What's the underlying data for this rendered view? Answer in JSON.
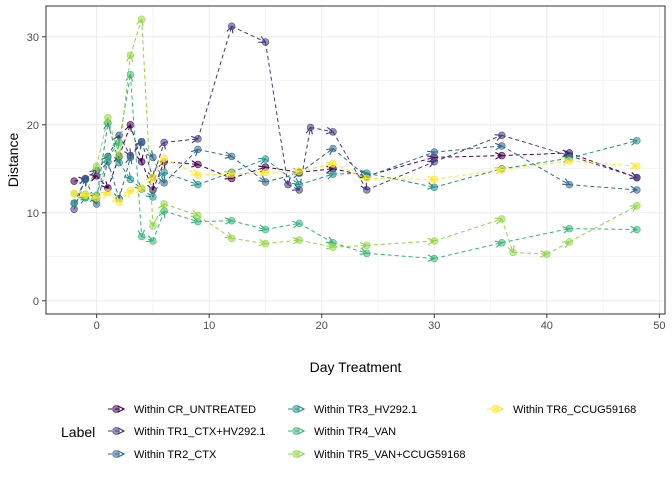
{
  "chart_data": {
    "type": "line",
    "xlabel": "Day Treatment",
    "ylabel": "Distance",
    "xlim": [
      -4.5,
      50.5
    ],
    "ylim": [
      -1.5,
      33.5
    ],
    "xticks": [
      0,
      10,
      20,
      30,
      40,
      50
    ],
    "yticks": [
      0,
      10,
      20,
      30
    ],
    "grid": true,
    "line_style": "dashed",
    "markers": "circle",
    "arrow_at_end": true,
    "legend_title": "Label",
    "legend_position": "bottom",
    "series": [
      {
        "name": "Within CR_UNTREATED",
        "color": "#440154",
        "x": [
          -2,
          -1,
          0,
          1,
          2,
          3,
          4,
          5,
          6,
          9,
          12,
          15,
          18,
          21,
          24,
          30,
          36,
          42,
          48
        ],
        "y": [
          13.6,
          13.8,
          14.2,
          12.8,
          16.4,
          20.0,
          15.8,
          12.6,
          15.8,
          15.5,
          13.9,
          15.2,
          14.6,
          15.0,
          14.2,
          16.3,
          16.5,
          16.8,
          14.0
        ]
      },
      {
        "name": "Within TR1_CTX+HV292.1",
        "color": "#443A83",
        "x": [
          -2,
          -1,
          0,
          1,
          2,
          3,
          4,
          5,
          6,
          9,
          12,
          15,
          17,
          18,
          19,
          21,
          24,
          30,
          36,
          42,
          48
        ],
        "y": [
          10.4,
          13.9,
          14.8,
          16.4,
          18.8,
          16.5,
          18.1,
          14.0,
          18.0,
          18.4,
          31.2,
          29.4,
          13.2,
          12.6,
          19.7,
          19.2,
          12.6,
          15.8,
          18.8,
          16.5,
          14.0
        ]
      },
      {
        "name": "Within TR2_CTX",
        "color": "#31688E",
        "x": [
          -2,
          -1,
          0,
          1,
          2,
          3,
          4,
          5,
          6,
          9,
          12,
          15,
          18,
          21,
          24,
          30,
          36,
          42,
          48
        ],
        "y": [
          11.1,
          13.8,
          11.0,
          15.8,
          11.6,
          16.3,
          18.0,
          16.3,
          13.4,
          17.2,
          16.4,
          13.5,
          14.5,
          17.3,
          14.1,
          16.9,
          17.6,
          13.2,
          12.6
        ]
      },
      {
        "name": "Within TR3_HV292.1",
        "color": "#21908C",
        "x": [
          -2,
          -1,
          0,
          1,
          2,
          3,
          4,
          5,
          6,
          9,
          12,
          15,
          18,
          21,
          24,
          30,
          36,
          42,
          48
        ],
        "y": [
          11.1,
          11.7,
          11.6,
          20.2,
          15.7,
          13.8,
          12.7,
          11.8,
          14.6,
          13.2,
          14.6,
          16.1,
          13.2,
          14.4,
          14.5,
          12.9,
          15.0,
          16.2,
          18.2
        ]
      },
      {
        "name": "Within TR4_VAN",
        "color": "#35B779",
        "x": [
          -1,
          0,
          1,
          2,
          3,
          4,
          5,
          6,
          9,
          12,
          15,
          18,
          21,
          24,
          30,
          36,
          42,
          48
        ],
        "y": [
          11.8,
          12.0,
          16.3,
          18.0,
          25.7,
          7.3,
          6.8,
          10.2,
          9.0,
          9.1,
          8.1,
          8.8,
          6.6,
          5.4,
          4.8,
          6.6,
          8.2,
          8.1
        ]
      },
      {
        "name": "Within TR5_VAN+CCUG59168",
        "color": "#8FD744",
        "x": [
          -2,
          -1,
          0,
          1,
          2,
          3,
          4,
          5,
          6,
          9,
          12,
          15,
          18,
          21,
          24,
          30,
          36,
          37,
          40,
          42,
          48
        ],
        "y": [
          12.2,
          12.1,
          15.3,
          20.8,
          16.5,
          27.9,
          32.0,
          8.5,
          11.0,
          9.7,
          7.1,
          6.5,
          6.9,
          6.1,
          6.3,
          6.8,
          9.3,
          5.5,
          5.3,
          6.7,
          10.8
        ]
      },
      {
        "name": "Within TR6_CCUG59168",
        "color": "#FDE725",
        "x": [
          -2,
          -1,
          0,
          1,
          2,
          3,
          4,
          5,
          6,
          9,
          12,
          15,
          18,
          21,
          24,
          30,
          36,
          42,
          48
        ],
        "y": [
          12.2,
          12.0,
          11.7,
          12.3,
          11.2,
          12.5,
          12.8,
          14.0,
          16.2,
          14.3,
          14.4,
          14.6,
          14.7,
          15.6,
          13.9,
          13.8,
          14.9,
          15.9,
          15.3
        ]
      }
    ]
  }
}
